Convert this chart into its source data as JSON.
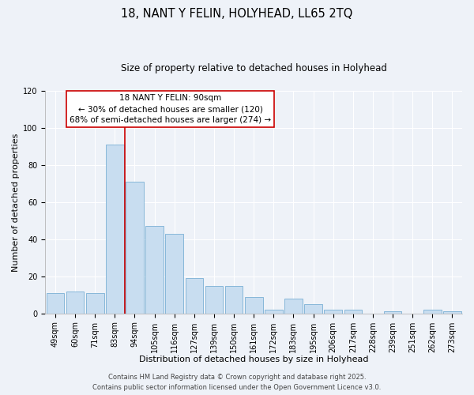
{
  "title": "18, NANT Y FELIN, HOLYHEAD, LL65 2TQ",
  "subtitle": "Size of property relative to detached houses in Holyhead",
  "xlabel": "Distribution of detached houses by size in Holyhead",
  "ylabel": "Number of detached properties",
  "categories": [
    "49sqm",
    "60sqm",
    "71sqm",
    "83sqm",
    "94sqm",
    "105sqm",
    "116sqm",
    "127sqm",
    "139sqm",
    "150sqm",
    "161sqm",
    "172sqm",
    "183sqm",
    "195sqm",
    "206sqm",
    "217sqm",
    "228sqm",
    "239sqm",
    "251sqm",
    "262sqm",
    "273sqm"
  ],
  "values": [
    11,
    12,
    11,
    91,
    71,
    47,
    43,
    19,
    15,
    15,
    9,
    2,
    8,
    5,
    2,
    2,
    0,
    1,
    0,
    2,
    1
  ],
  "bar_color": "#c8ddf0",
  "bar_edge_color": "#7aafd4",
  "vline_color": "#cc0000",
  "ylim": [
    0,
    120
  ],
  "yticks": [
    0,
    20,
    40,
    60,
    80,
    100,
    120
  ],
  "annotation_title": "18 NANT Y FELIN: 90sqm",
  "annotation_line1": "← 30% of detached houses are smaller (120)",
  "annotation_line2": "68% of semi-detached houses are larger (274) →",
  "annotation_box_color": "#ffffff",
  "annotation_box_edge_color": "#cc0000",
  "footer1": "Contains HM Land Registry data © Crown copyright and database right 2025.",
  "footer2": "Contains public sector information licensed under the Open Government Licence v3.0.",
  "background_color": "#eef2f8",
  "grid_color": "#ffffff",
  "title_fontsize": 10.5,
  "subtitle_fontsize": 8.5,
  "axis_label_fontsize": 8,
  "tick_fontsize": 7,
  "annotation_fontsize": 7.5,
  "footer_fontsize": 6
}
